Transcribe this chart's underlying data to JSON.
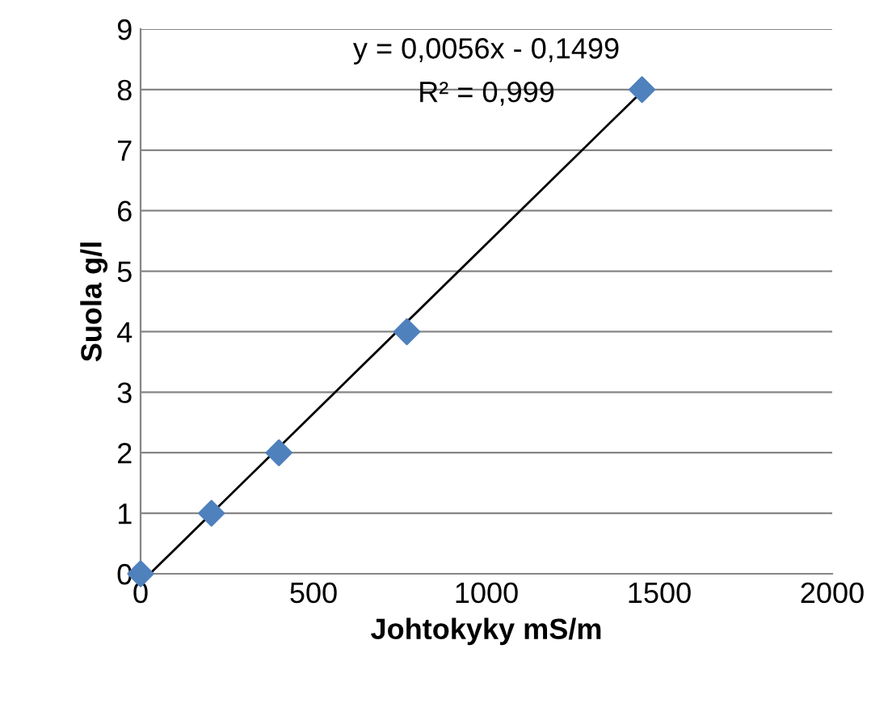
{
  "chart_data": {
    "type": "scatter",
    "xlabel": "Johtokyky mS/m",
    "ylabel": "Suola g/l",
    "annotations": [
      "y = 0,0056x - 0,1499",
      "R² = 0,999"
    ],
    "x": [
      0,
      205,
      400,
      770,
      1450
    ],
    "series": [
      {
        "color": "#4f81bd",
        "marker": "diamond",
        "values": [
          0,
          1,
          2,
          4,
          8
        ]
      },
      {
        "type": "line",
        "color": "#000000",
        "x": [
          27,
          1450
        ],
        "values": [
          0,
          7.97
        ]
      }
    ],
    "xlim": [
      0,
      2000
    ],
    "xticks": [
      0,
      500,
      1000,
      1500,
      2000
    ],
    "ylim": [
      0,
      9
    ],
    "yticks": [
      0,
      1,
      2,
      3,
      4,
      5,
      6,
      7,
      8,
      9
    ],
    "grid": "y",
    "legend": false
  }
}
